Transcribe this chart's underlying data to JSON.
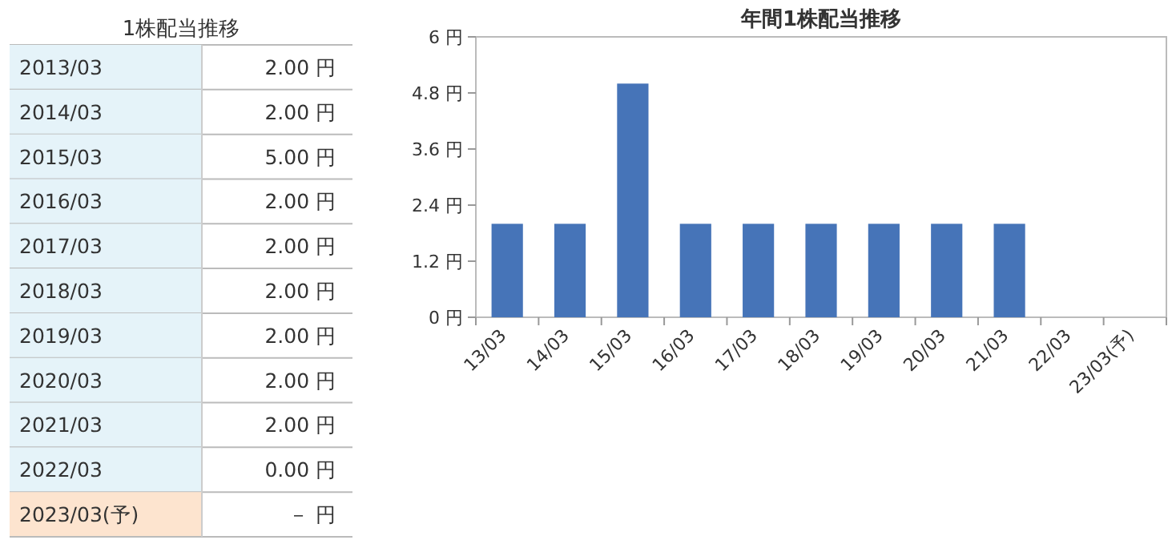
{
  "chart_data": [
    {
      "type": "other",
      "title": "1株配当推移",
      "annotations": [
        "2013/03",
        "2.00 円",
        "2014/03",
        "2.00 円",
        "2015/03",
        "5.00 円",
        "2016/03",
        "2.00 円",
        "2017/03",
        "2.00 円",
        "2018/03",
        "2.00 円",
        "2019/03",
        "2.00 円",
        "2020/03",
        "2.00 円",
        "2021/03",
        "2.00 円",
        "2022/03",
        "0.00 円",
        "2023/03(予)",
        "－ 円"
      ]
    },
    {
      "type": "bar",
      "title": "年間1株配当推移",
      "categories": [
        "13/03",
        "14/03",
        "15/03",
        "16/03",
        "17/03",
        "18/03",
        "19/03",
        "20/03",
        "21/03",
        "22/03",
        "23/03(予)"
      ],
      "values": [
        2,
        2,
        5,
        2,
        2,
        2,
        2,
        2,
        2,
        0,
        null
      ],
      "color": "#4674b8",
      "ylim": [
        0,
        6
      ],
      "yticks": [
        {
          "value": 0,
          "label": "0 円"
        },
        {
          "value": 1.2,
          "label": "1.2 円"
        },
        {
          "value": 2.4,
          "label": "2.4 円"
        },
        {
          "value": 3.6,
          "label": "3.6 円"
        },
        {
          "value": 4.8,
          "label": "4.8 円"
        },
        {
          "value": 6,
          "label": "6 円"
        }
      ],
      "grid": false
    }
  ]
}
